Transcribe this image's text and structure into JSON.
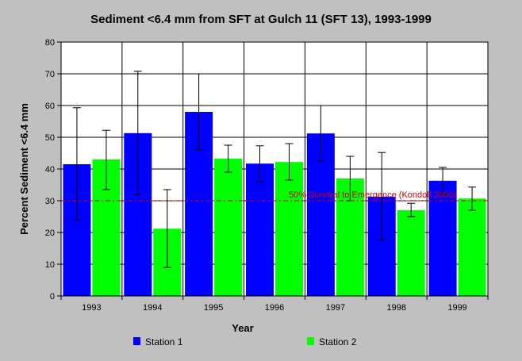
{
  "chart_data": {
    "type": "bar",
    "title": "Sediment <6.4 mm from SFT at Gulch 11 (SFT 13), 1993-1999",
    "xlabel": "Year",
    "ylabel": "Percent Sediment <6.4 mm",
    "ylim": [
      0,
      80
    ],
    "yticks": [
      0,
      10,
      20,
      30,
      40,
      50,
      60,
      70,
      80
    ],
    "grid": true,
    "legend_position": "bottom",
    "categories": [
      "1993",
      "1994",
      "1995",
      "1996",
      "1997",
      "1998",
      "1999"
    ],
    "series": [
      {
        "name": "Station 1",
        "color": "#0000ff",
        "values": [
          41.5,
          51.3,
          58,
          41.7,
          51.2,
          31.3,
          36.3
        ],
        "error_low": [
          24,
          32,
          46,
          36,
          42.5,
          17.5,
          32
        ],
        "error_high": [
          59.3,
          70.8,
          70,
          47.3,
          60,
          45.2,
          40.5
        ]
      },
      {
        "name": "Station 2",
        "color": "#00ff00",
        "values": [
          43,
          21.2,
          43.3,
          42.2,
          37,
          27,
          30.7
        ],
        "error_low": [
          33.5,
          9,
          39,
          36.5,
          30,
          25,
          27
        ],
        "error_high": [
          52.2,
          33.5,
          47.5,
          48,
          44,
          29.2,
          34.3
        ]
      }
    ],
    "reference_line": {
      "value": 30,
      "label": "50% Survival to Emergence (Kondolf 2000)",
      "color": "#cc0000"
    }
  }
}
